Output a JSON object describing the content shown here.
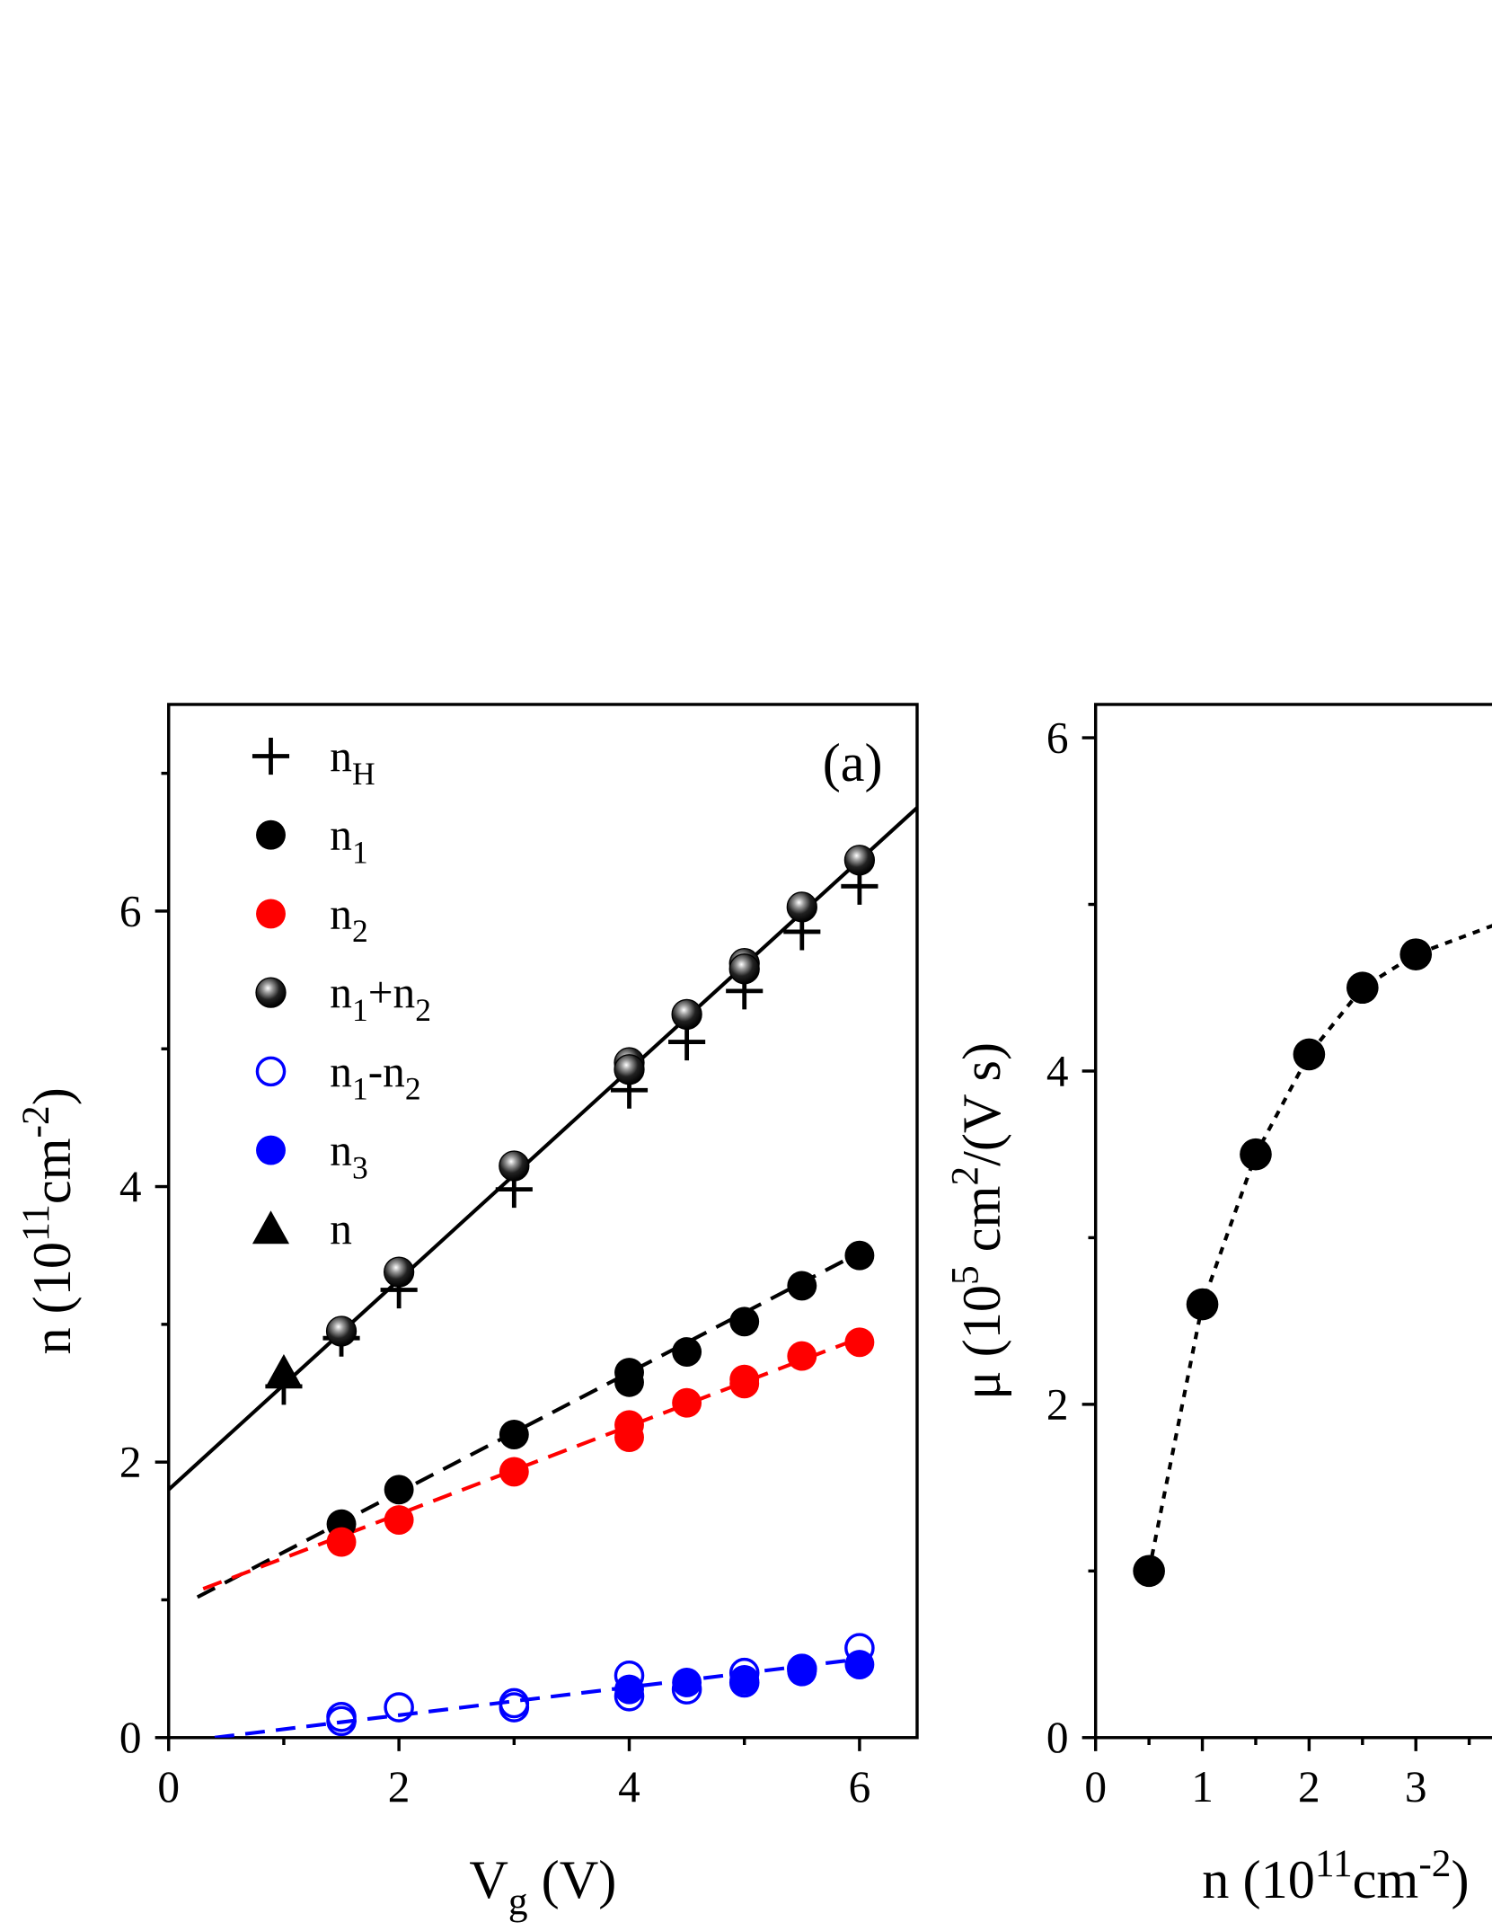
{
  "chart_data": [
    {
      "type": "scatter",
      "panel_label": "(a)",
      "xlabel": [
        "V",
        {
          "sub": "g"
        },
        " (V)"
      ],
      "ylabel": [
        "n (10",
        {
          "sup": "11"
        },
        "cm",
        {
          "sup": "-2"
        },
        ")"
      ],
      "xlim": [
        0,
        6.5
      ],
      "ylim": [
        0,
        7.5
      ],
      "xticks": [
        0,
        2,
        4,
        6
      ],
      "yticks": [
        0,
        2,
        4,
        6
      ],
      "minor_xticks": [
        1,
        3,
        5
      ],
      "minor_yticks": [
        1,
        3,
        5,
        7
      ],
      "series": [
        {
          "name": [
            "n",
            {
              "sub": "H"
            }
          ],
          "marker": "plus",
          "color": "#000000",
          "x": [
            1,
            1.5,
            2,
            3,
            4,
            4.5,
            5,
            5.5,
            6
          ],
          "values": [
            2.55,
            2.9,
            3.25,
            3.98,
            4.7,
            5.05,
            5.42,
            5.85,
            6.18
          ]
        },
        {
          "name": [
            "n",
            {
              "sub": "1"
            }
          ],
          "marker": "circle",
          "color": "#000000",
          "x": [
            1.5,
            2,
            3,
            4,
            4,
            4.5,
            5,
            5.5,
            6
          ],
          "values": [
            1.55,
            1.8,
            2.2,
            2.65,
            2.58,
            2.8,
            3.02,
            3.28,
            3.5
          ]
        },
        {
          "name": [
            "n",
            {
              "sub": "2"
            }
          ],
          "marker": "circle",
          "color": "#ff0000",
          "x": [
            1.5,
            2,
            3,
            4,
            4,
            4.5,
            5,
            5,
            5.5,
            6
          ],
          "values": [
            1.42,
            1.58,
            1.93,
            2.27,
            2.18,
            2.43,
            2.6,
            2.57,
            2.77,
            2.87
          ]
        },
        {
          "name": [
            "n",
            {
              "sub": "1"
            },
            "+n",
            {
              "sub": "2"
            }
          ],
          "marker": "sphere",
          "color": "#000000",
          "x": [
            1.5,
            2,
            3,
            4,
            4,
            4.5,
            5,
            5,
            5.5,
            6
          ],
          "values": [
            2.95,
            3.38,
            4.15,
            4.9,
            4.85,
            5.25,
            5.62,
            5.58,
            6.03,
            6.37
          ]
        },
        {
          "name": [
            "n",
            {
              "sub": "1"
            },
            "-n",
            {
              "sub": "2"
            }
          ],
          "marker": "open-circle",
          "color": "#0000ff",
          "x": [
            1.5,
            1.5,
            2,
            3,
            3,
            4,
            4,
            4.5,
            5,
            5,
            5.5,
            6
          ],
          "values": [
            0.15,
            0.12,
            0.22,
            0.25,
            0.22,
            0.45,
            0.3,
            0.35,
            0.47,
            0.4,
            0.5,
            0.65
          ]
        },
        {
          "name": [
            "n",
            {
              "sub": "3"
            }
          ],
          "marker": "circle",
          "color": "#0000ff",
          "x": [
            4,
            4.5,
            5,
            5.5,
            5.5,
            6
          ],
          "values": [
            0.35,
            0.4,
            0.42,
            0.48,
            0.5,
            0.53
          ]
        },
        {
          "name": [
            "n"
          ],
          "marker": "triangle",
          "color": "#000000",
          "x": [
            1
          ],
          "values": [
            2.65
          ]
        }
      ],
      "fits": [
        {
          "color": "#000000",
          "dash": "solid",
          "x": [
            0,
            6.5
          ],
          "values": [
            1.8,
            6.75
          ]
        },
        {
          "color": "#000000",
          "dash": "dashed",
          "x": [
            0.25,
            6
          ],
          "values": [
            1.02,
            3.52
          ]
        },
        {
          "color": "#ff0000",
          "dash": "dashed",
          "x": [
            0.3,
            6
          ],
          "values": [
            1.08,
            2.9
          ]
        },
        {
          "color": "#0000ff",
          "dash": "dashed",
          "x": [
            0.4,
            6
          ],
          "values": [
            0,
            0.57
          ]
        }
      ]
    },
    {
      "type": "line",
      "xlabel": [
        "n (10",
        {
          "sup": "11"
        },
        "cm",
        {
          "sup": "-2"
        },
        ")"
      ],
      "ylabel": [
        "μ (10",
        {
          "sup": "5"
        },
        " cm",
        {
          "sup": "2"
        },
        "/(V s)"
      ],
      "xlim": [
        0,
        7
      ],
      "ylim": [
        0,
        6.2
      ],
      "xticks": [
        0,
        1,
        2,
        3
      ],
      "yticks": [
        0,
        2,
        4,
        6
      ],
      "minor_xticks": [
        0.5,
        1.5,
        2.5,
        3.5
      ],
      "minor_yticks": [
        1,
        3,
        5
      ],
      "series": [
        {
          "marker": "circle",
          "color": "#000000",
          "x": [
            0.5,
            1,
            1.5,
            2,
            2.5,
            3
          ],
          "values": [
            1.0,
            2.6,
            3.5,
            4.1,
            4.5,
            4.7
          ]
        }
      ],
      "fits": [
        {
          "color": "#000000",
          "dash": "dotted",
          "x": [
            0.5,
            1,
            1.5,
            2,
            2.5,
            3,
            3.75
          ],
          "values": [
            1.0,
            2.6,
            3.5,
            4.1,
            4.5,
            4.7,
            4.88
          ]
        }
      ]
    }
  ]
}
